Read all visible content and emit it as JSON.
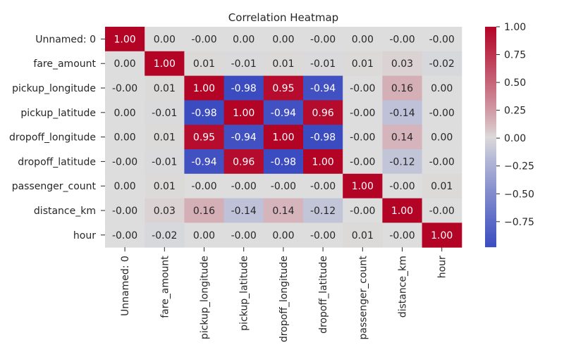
{
  "chart_data": {
    "type": "heatmap",
    "title": "Correlation Heatmap",
    "row_labels": [
      "Unnamed: 0",
      "fare_amount",
      "pickup_longitude",
      "pickup_latitude",
      "dropoff_longitude",
      "dropoff_latitude",
      "passenger_count",
      "distance_km",
      "hour"
    ],
    "col_labels": [
      "Unnamed: 0",
      "fare_amount",
      "pickup_longitude",
      "pickup_latitude",
      "dropoff_longitude",
      "dropoff_latitude",
      "passenger_count",
      "distance_km",
      "hour"
    ],
    "values": [
      [
        1.0,
        0.0,
        -0.0,
        0.0,
        0.0,
        -0.0,
        0.0,
        -0.0,
        -0.0
      ],
      [
        0.0,
        1.0,
        0.01,
        -0.01,
        0.01,
        -0.01,
        0.01,
        0.03,
        -0.02
      ],
      [
        -0.0,
        0.01,
        1.0,
        -0.98,
        0.95,
        -0.94,
        -0.0,
        0.16,
        0.0
      ],
      [
        0.0,
        -0.01,
        -0.98,
        1.0,
        -0.94,
        0.96,
        -0.0,
        -0.14,
        -0.0
      ],
      [
        0.0,
        0.01,
        0.95,
        -0.94,
        1.0,
        -0.98,
        -0.0,
        0.14,
        0.0
      ],
      [
        -0.0,
        -0.01,
        -0.94,
        0.96,
        -0.98,
        1.0,
        -0.0,
        -0.12,
        -0.0
      ],
      [
        0.0,
        0.01,
        -0.0,
        -0.0,
        -0.0,
        -0.0,
        1.0,
        -0.0,
        0.01
      ],
      [
        -0.0,
        0.03,
        0.16,
        -0.14,
        0.14,
        -0.12,
        -0.0,
        1.0,
        -0.0
      ],
      [
        -0.0,
        -0.02,
        0.0,
        -0.0,
        0.0,
        -0.0,
        0.01,
        -0.0,
        1.0
      ]
    ],
    "value_format": "2 decimals",
    "colormap": "coolwarm",
    "colorbar": {
      "range": [
        -0.98,
        1.0
      ],
      "ticks": [
        1.0,
        0.75,
        0.5,
        0.25,
        0.0,
        -0.25,
        -0.5,
        -0.75
      ],
      "tick_labels": [
        "1.00",
        "0.75",
        "0.50",
        "0.25",
        "0.00",
        "−0.25",
        "−0.50",
        "−0.75"
      ]
    },
    "colors": {
      "min": "#3b4cc0",
      "mid": "#dddddd",
      "max": "#b40426"
    },
    "grid": false
  }
}
